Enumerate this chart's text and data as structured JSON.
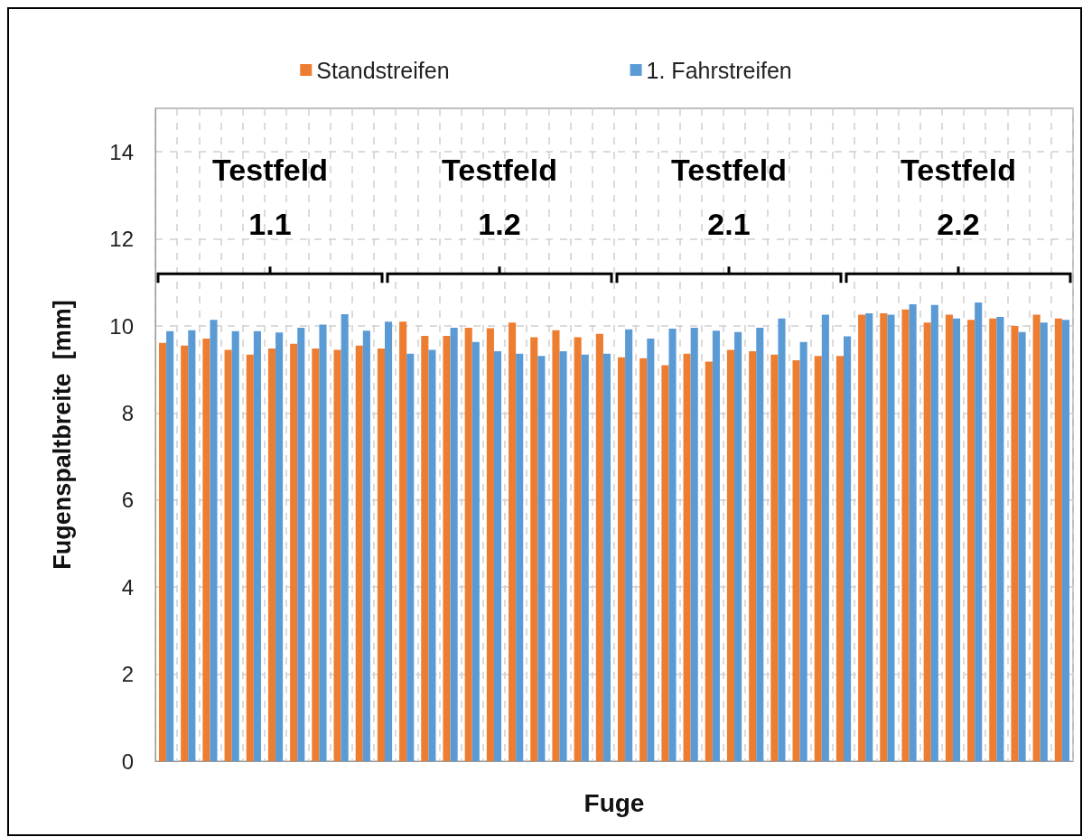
{
  "chart_data": {
    "type": "bar",
    "xlabel": "Fuge",
    "ylabel": "Fugenspaltbreite  [mm]",
    "categories": [
      null,
      null,
      null,
      null,
      null,
      null,
      null,
      null,
      null,
      null,
      null,
      null,
      null,
      null,
      null,
      null,
      null,
      null,
      null,
      null,
      null,
      null,
      null,
      null,
      null,
      null,
      null,
      null,
      null,
      null,
      null,
      null,
      null,
      null,
      null,
      null,
      null,
      null,
      null,
      null,
      null,
      null
    ],
    "series": [
      {
        "name": "Standstreifen",
        "color": "#ed7d31",
        "values": [
          9.61,
          9.55,
          9.71,
          9.45,
          9.34,
          9.48,
          9.59,
          9.48,
          9.45,
          9.55,
          9.48,
          10.1,
          9.77,
          9.77,
          9.96,
          9.95,
          10.08,
          9.74,
          9.9,
          9.74,
          9.82,
          9.28,
          9.26,
          9.1,
          9.36,
          9.18,
          9.45,
          9.42,
          9.34,
          9.21,
          9.31,
          9.31,
          10.26,
          10.29,
          10.38,
          10.08,
          10.26,
          10.14,
          10.17,
          10.0,
          10.26,
          10.17
        ]
      },
      {
        "name": "1. Fahrstreifen",
        "color": "#5b9bd5",
        "values": [
          9.88,
          9.9,
          10.14,
          9.88,
          9.88,
          9.85,
          9.96,
          10.03,
          10.27,
          9.89,
          10.1,
          9.36,
          9.45,
          9.96,
          9.63,
          9.42,
          9.36,
          9.31,
          9.42,
          9.34,
          9.36,
          9.92,
          9.71,
          9.94,
          9.96,
          9.89,
          9.86,
          9.96,
          10.17,
          9.63,
          10.26,
          9.76,
          10.29,
          10.26,
          10.5,
          10.48,
          10.17,
          10.54,
          10.21,
          9.86,
          10.08,
          10.14
        ]
      }
    ],
    "ylim": [
      0,
      15
    ],
    "yticks": [
      0,
      2,
      4,
      6,
      8,
      10,
      12,
      14
    ],
    "grid": true,
    "legend": "top",
    "annotations": [
      "Testfeld\n1.1",
      "Testfeld\n1.2",
      "Testfeld\n2.1",
      "Testfeld\n2.2"
    ]
  }
}
